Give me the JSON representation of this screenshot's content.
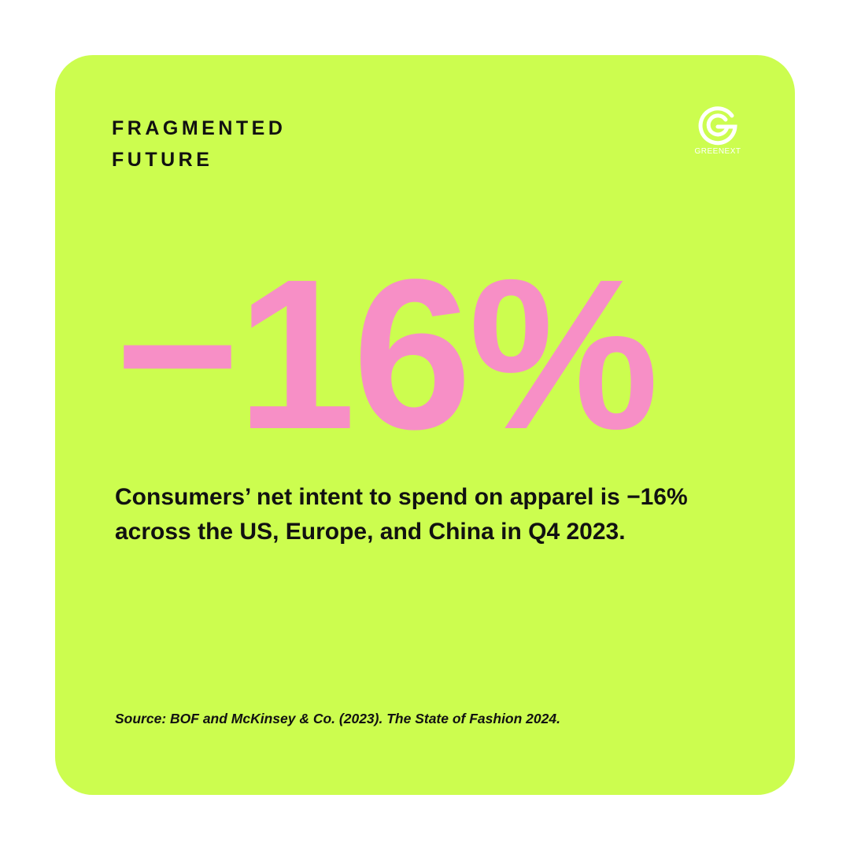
{
  "header": {
    "title_lines": [
      "FRAGMENTED",
      "FUTURE"
    ],
    "logo": "GREENEXT"
  },
  "stat": "−16%",
  "body": "Consumers’ net intent to spend on apparel is −16% across the US, Europe, and China in Q4 2023.",
  "source": "Source: BOF and McKinsey & Co. (2023). The State of Fashion 2024."
}
